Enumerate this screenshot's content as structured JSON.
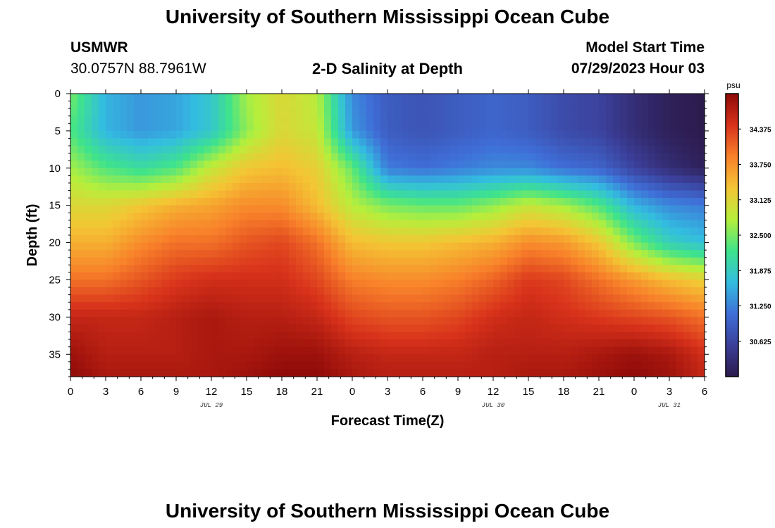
{
  "header": {
    "title": "University of Southern Mississippi Ocean Cube",
    "station": "USMWR",
    "coords": "30.0757N  88.7961W",
    "subtitle": "2-D Salinity at Depth",
    "model_label": "Model Start Time",
    "model_time": "07/29/2023 Hour 03"
  },
  "footer": {
    "title": "University of Southern Mississippi Ocean Cube"
  },
  "chart_data": {
    "type": "heatmap",
    "xlabel": "Forecast Time(Z)",
    "ylabel": "Depth (ft)",
    "x_tick_labels": [
      "0",
      "3",
      "6",
      "9",
      "12",
      "15",
      "18",
      "21",
      "0",
      "3",
      "6",
      "9",
      "12",
      "15",
      "18",
      "21",
      "0",
      "3",
      "6"
    ],
    "x_range_hours": [
      0,
      54
    ],
    "date_labels": [
      {
        "text": "JUL 29",
        "hour": 12
      },
      {
        "text": "JUL 30",
        "hour": 36
      },
      {
        "text": "JUL 31",
        "hour": 51
      }
    ],
    "y_ticks": [
      0,
      5,
      10,
      15,
      20,
      25,
      30,
      35
    ],
    "y_range": [
      0,
      38
    ],
    "y_reversed": true,
    "colorbar": {
      "unit": "psu",
      "ticks": [
        "34.375",
        "33.750",
        "33.125",
        "32.500",
        "31.875",
        "31.250",
        "30.625"
      ],
      "range": [
        30.0,
        35.0
      ],
      "colors": [
        "#2c1a4c",
        "#3b3f99",
        "#3f6fd8",
        "#33bde0",
        "#3ee38c",
        "#b6ef3b",
        "#f4c534",
        "#f8812a",
        "#d8321b",
        "#8f0a08"
      ]
    },
    "x_hours": [
      0,
      3,
      6,
      9,
      12,
      15,
      18,
      21,
      24,
      27,
      30,
      33,
      36,
      39,
      42,
      45,
      48,
      51,
      54
    ],
    "depths_ft": [
      0,
      5,
      10,
      15,
      20,
      25,
      30,
      35,
      38
    ],
    "salinity_psu": [
      [
        32.5,
        31.6,
        31.4,
        31.5,
        31.8,
        32.7,
        33.1,
        32.8,
        31.3,
        30.9,
        30.8,
        30.9,
        31.0,
        30.9,
        30.7,
        30.6,
        30.3,
        30.1,
        30.0
      ],
      [
        32.3,
        31.6,
        31.4,
        31.5,
        31.8,
        32.6,
        33.1,
        32.9,
        31.4,
        30.9,
        30.8,
        30.9,
        31.0,
        30.9,
        30.7,
        30.6,
        30.3,
        30.1,
        30.0
      ],
      [
        32.7,
        32.3,
        32.1,
        32.3,
        32.9,
        33.3,
        33.4,
        33.2,
        32.4,
        31.2,
        31.1,
        31.2,
        31.3,
        31.3,
        31.1,
        31.0,
        30.6,
        30.3,
        30.1
      ],
      [
        33.1,
        33.1,
        33.3,
        33.5,
        33.6,
        33.8,
        33.8,
        33.4,
        32.8,
        32.5,
        32.4,
        32.4,
        32.6,
        32.9,
        32.7,
        32.3,
        31.6,
        31.3,
        31.2
      ],
      [
        33.5,
        33.5,
        33.8,
        34.0,
        34.0,
        34.2,
        34.3,
        34.0,
        33.4,
        33.3,
        33.3,
        33.4,
        33.5,
        33.8,
        33.7,
        33.3,
        32.5,
        31.9,
        31.7
      ],
      [
        34.0,
        34.0,
        34.2,
        34.4,
        34.5,
        34.5,
        34.5,
        34.3,
        33.9,
        33.8,
        33.8,
        33.9,
        34.1,
        34.4,
        34.3,
        34.0,
        33.7,
        33.4,
        33.2
      ],
      [
        34.6,
        34.6,
        34.6,
        34.7,
        34.8,
        34.7,
        34.7,
        34.6,
        34.3,
        34.2,
        34.2,
        34.3,
        34.5,
        34.6,
        34.5,
        34.4,
        34.3,
        34.2,
        34.0
      ],
      [
        34.9,
        34.7,
        34.7,
        34.7,
        34.8,
        34.8,
        34.9,
        34.9,
        34.7,
        34.6,
        34.6,
        34.6,
        34.7,
        34.7,
        34.7,
        34.8,
        34.9,
        34.8,
        34.5
      ],
      [
        35.0,
        34.8,
        34.8,
        34.8,
        34.8,
        34.9,
        35.0,
        35.0,
        34.8,
        34.7,
        34.7,
        34.7,
        34.7,
        34.8,
        34.8,
        34.9,
        35.0,
        34.9,
        34.6
      ]
    ]
  }
}
